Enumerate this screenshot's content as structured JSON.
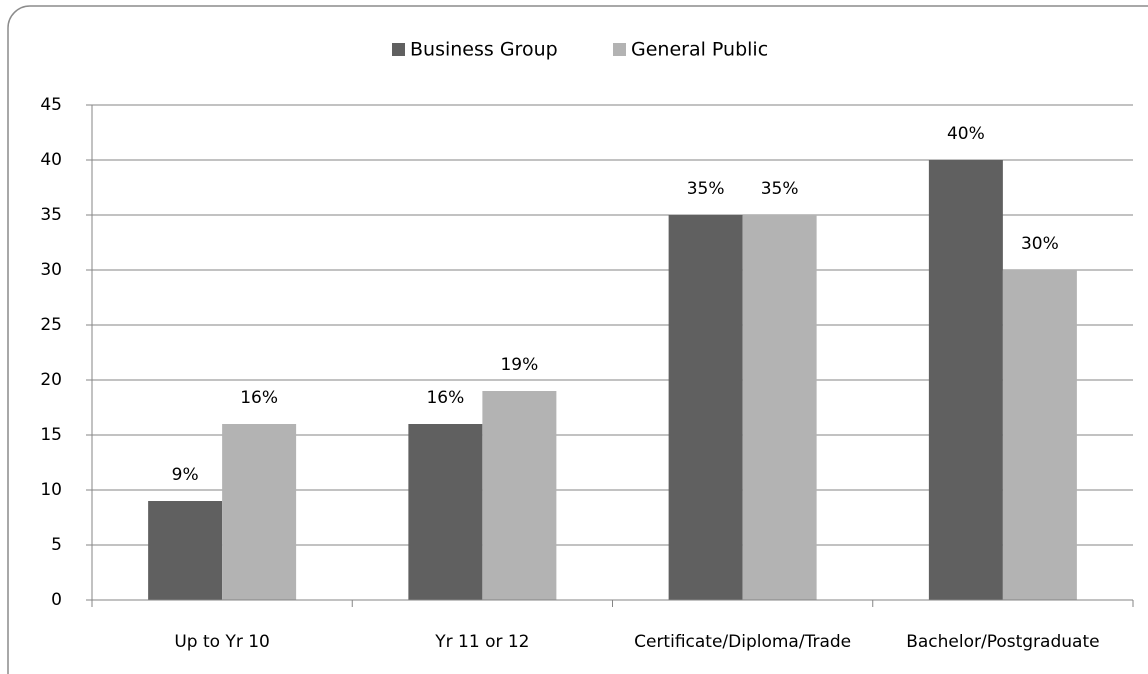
{
  "chart_data": {
    "type": "bar",
    "categories": [
      "Up to Yr 10",
      "Yr 11 or 12",
      "Certificate/Diploma/Trade",
      "Bachelor/Postgraduate"
    ],
    "series": [
      {
        "name": "Business Group",
        "color": "#606060",
        "values": [
          9,
          16,
          35,
          40
        ],
        "value_labels": [
          "9%",
          "16%",
          "35%",
          "40%"
        ]
      },
      {
        "name": "General Public",
        "color": "#b3b3b3",
        "values": [
          16,
          19,
          35,
          30
        ],
        "value_labels": [
          "16%",
          "19%",
          "35%",
          "30%"
        ]
      }
    ],
    "ylim": [
      0,
      45
    ],
    "yticks": [
      0,
      5,
      10,
      15,
      20,
      25,
      30,
      35,
      40,
      45
    ],
    "grid": true,
    "legend": "top"
  }
}
